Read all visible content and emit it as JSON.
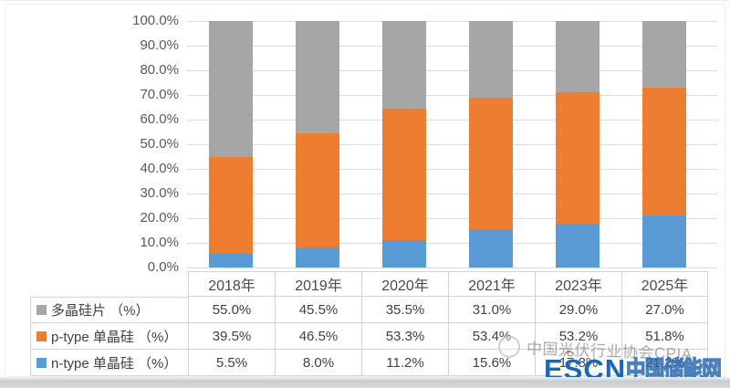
{
  "chart_data": {
    "type": "bar",
    "variant": "100%-stacked-column",
    "title": "",
    "xlabel": "",
    "ylabel": "",
    "ylim": [
      0,
      100
    ],
    "ytick_step": 10,
    "ytick_labels": [
      "100.0%",
      "90.0%",
      "80.0%",
      "70.0%",
      "60.0%",
      "50.0%",
      "40.0%",
      "30.0%",
      "20.0%",
      "10.0%",
      "0.0%"
    ],
    "grid": true,
    "categories": [
      "2018年",
      "2019年",
      "2020年",
      "2021年",
      "2023年",
      "2025年"
    ],
    "series": [
      {
        "name": "多晶硅片 （%）",
        "color": "#A6A6A6",
        "values": [
          55.0,
          45.5,
          35.5,
          31.0,
          29.0,
          27.0
        ]
      },
      {
        "name": "p-type 单晶硅 （%）",
        "color": "#ED7D31",
        "values": [
          39.5,
          46.5,
          53.3,
          53.4,
          53.2,
          51.8
        ]
      },
      {
        "name": "n-type 单晶硅 （%）",
        "color": "#5B9BD5",
        "values": [
          5.5,
          8.0,
          11.2,
          15.6,
          17.8,
          21.2
        ]
      }
    ],
    "legend_position": "table-left-column"
  },
  "table": {
    "rows": [
      {
        "label": "多晶硅片 （%）",
        "swatch_color": "#A6A6A6",
        "values": [
          "55.0%",
          "45.5%",
          "35.5%",
          "31.0%",
          "29.0%",
          "27.0%"
        ]
      },
      {
        "label": "p-type 单晶硅 （%）",
        "swatch_color": "#ED7D31",
        "values": [
          "39.5%",
          "46.5%",
          "53.3%",
          "53.4%",
          "53.2%",
          "51.8%"
        ]
      },
      {
        "label": "n-type 单晶硅 （%）",
        "swatch_color": "#5B9BD5",
        "values": [
          "5.5%",
          "8.0%",
          "11.2%",
          "15.6%",
          "17.8%",
          "21.2%"
        ]
      }
    ]
  },
  "watermarks": {
    "cpia_text": "中国光伏行业协会CPIA",
    "escn_prefix": "ESCN",
    "escn_suffix": "中国储能网"
  },
  "colors": {
    "bar_gray": "#A6A6A6",
    "bar_orange": "#ED7D31",
    "bar_blue": "#5B9BD5",
    "gridline": "#DCDCDC",
    "table_border": "#D2D2D2",
    "axis_text": "#595959",
    "escn_blue": "#1B66B6"
  }
}
